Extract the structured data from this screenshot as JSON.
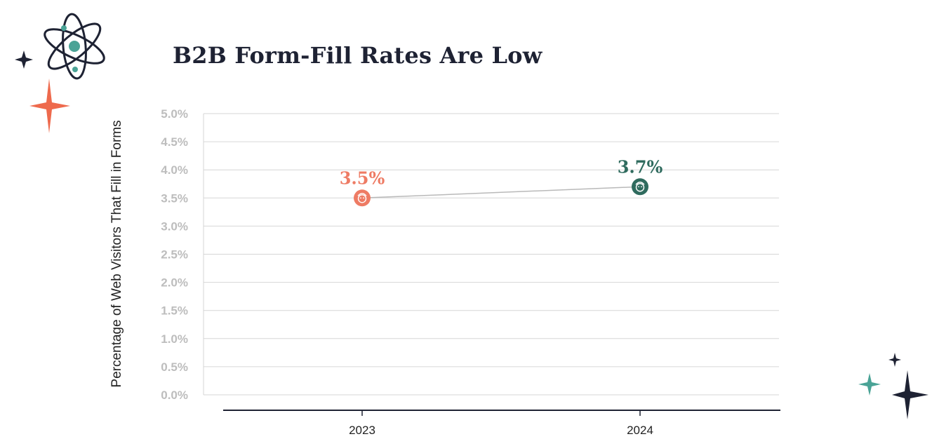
{
  "chart_data": {
    "type": "line",
    "title": "B2B Form-Fill Rates Are Low",
    "xlabel": "",
    "ylabel": "Percentage of Web Visitors That Fill in Forms",
    "categories": [
      "2023",
      "2024"
    ],
    "series": [
      {
        "values": [
          3.5,
          3.7
        ],
        "data_labels": [
          "3.5%",
          "3.7%"
        ],
        "point_colors": [
          "#ee7b64",
          "#2f6b5e"
        ]
      }
    ],
    "yticks": [
      0.0,
      0.5,
      1.0,
      1.5,
      2.0,
      2.5,
      3.0,
      3.5,
      4.0,
      4.5,
      5.0
    ],
    "ytick_labels": [
      "0.0%",
      "0.5%",
      "1.0%",
      "1.5%",
      "2.0%",
      "2.5%",
      "3.0%",
      "3.5%",
      "4.0%",
      "4.5%",
      "5.0%"
    ],
    "ylim": [
      0,
      5
    ],
    "grid": true,
    "line_color": "#b9b9b9",
    "tick_color": "#bdbdbd"
  },
  "decorations": {
    "accent_orange": "#ee6a4d",
    "accent_teal": "#4aa396",
    "dark": "#1e2233"
  }
}
